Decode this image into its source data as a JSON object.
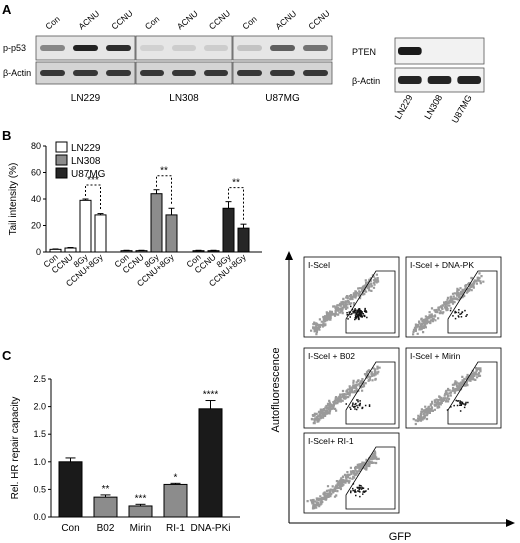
{
  "panels": {
    "a": {
      "label": "A",
      "blot_lanes": [
        "Con",
        "ACNU",
        "CCNU"
      ],
      "row_labels": [
        "p-p53",
        "β-Actin"
      ],
      "cell_lines": [
        "LN229",
        "LN308",
        "U87MG"
      ],
      "pten": {
        "row_labels": [
          "PTEN",
          "β-Actin"
        ],
        "lanes": [
          "LN229",
          "LN308",
          "U87MG"
        ]
      }
    },
    "b": {
      "label": "B"
    },
    "c": {
      "label": "C"
    },
    "flow": {
      "ylabel": "Autofluorescence",
      "xlabel": "GFP",
      "plots": [
        "I-SceI",
        "I-SceI + DNA-PK",
        "I-SceI + B02",
        "I-SceI + Mirin",
        "I-SceI+ RI-1"
      ]
    }
  },
  "chart_data": [
    {
      "panel": "B",
      "type": "bar",
      "ylabel": "Tail intensity (%)",
      "ylim": [
        0,
        80
      ],
      "yticks": [
        0,
        20,
        40,
        60,
        80
      ],
      "legend_position": "top-left",
      "groups": [
        "LN229",
        "LN308",
        "U87MG"
      ],
      "categories": [
        "Con",
        "CCNU",
        "8Gy",
        "CCNU+8Gy"
      ],
      "series": [
        {
          "name": "LN229",
          "color": "#ffffff",
          "values": [
            2,
            3,
            39,
            28
          ],
          "errors": [
            0.3,
            0.4,
            1,
            1
          ]
        },
        {
          "name": "LN308",
          "color": "#8c8c8c",
          "values": [
            1,
            1,
            44,
            28
          ],
          "errors": [
            0.3,
            0.3,
            3,
            5
          ]
        },
        {
          "name": "U87MG",
          "color": "#262626",
          "values": [
            1,
            1,
            33,
            18
          ],
          "errors": [
            0.3,
            0.3,
            5,
            3
          ]
        }
      ],
      "significance": [
        {
          "group": "LN229",
          "bars": [
            2,
            3
          ],
          "label": "***"
        },
        {
          "group": "LN308",
          "bars": [
            2,
            3
          ],
          "label": "**"
        },
        {
          "group": "U87MG",
          "bars": [
            2,
            3
          ],
          "label": "**"
        }
      ]
    },
    {
      "panel": "C",
      "type": "bar",
      "ylabel": "Rel. HR repair capacity",
      "ylim": [
        0,
        2.5
      ],
      "yticks": [
        "0.0",
        "0.5",
        "1.0",
        "1.5",
        "2.0",
        "2.5"
      ],
      "categories": [
        "Con",
        "B02",
        "Mirin",
        "RI-1",
        "DNA-PKi"
      ],
      "values": [
        1.0,
        0.36,
        0.2,
        0.59,
        1.96
      ],
      "errors": [
        0.07,
        0.04,
        0.03,
        0.02,
        0.15
      ],
      "colors": [
        "#1a1a1a",
        "#8c8c8c",
        "#8c8c8c",
        "#8c8c8c",
        "#1a1a1a"
      ],
      "significance": [
        "",
        "**",
        "***",
        "*",
        "****"
      ]
    }
  ]
}
